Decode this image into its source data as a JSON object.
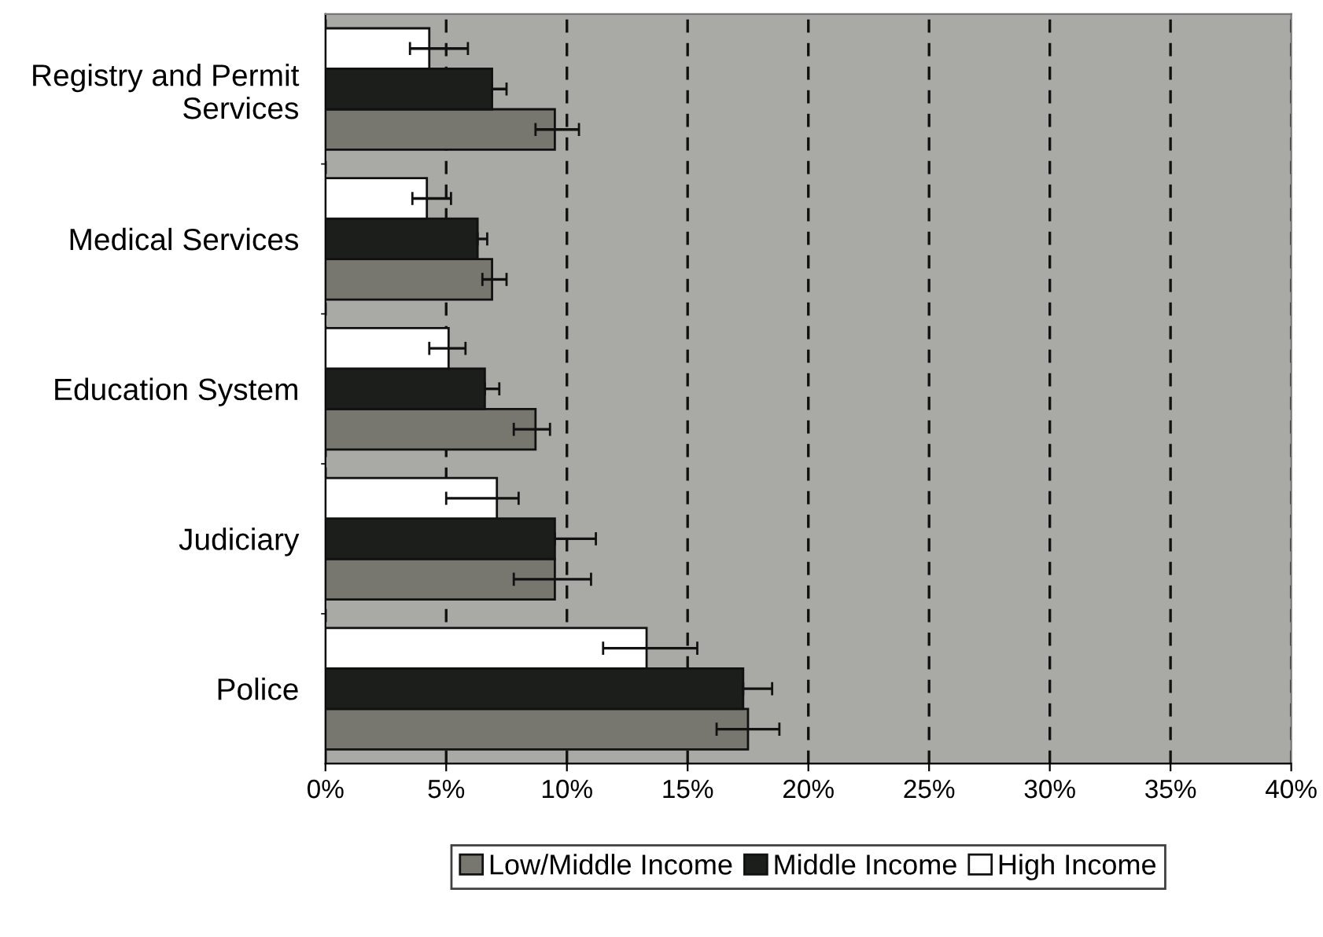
{
  "chart_data": {
    "type": "bar",
    "orientation": "horizontal",
    "categories": [
      "Registry and Permit\nServices",
      "Medical Services",
      "Education System",
      "Judiciary",
      "Police"
    ],
    "series": [
      {
        "name": "Low/Middle Income",
        "color": "#77776f",
        "values": [
          9.5,
          6.9,
          8.7,
          9.5,
          17.5
        ],
        "errors": [
          [
            8.7,
            10.5
          ],
          [
            6.5,
            7.5
          ],
          [
            7.8,
            9.3
          ],
          [
            7.8,
            11.0
          ],
          [
            16.2,
            18.8
          ]
        ]
      },
      {
        "name": "Middle Income",
        "color": "#1c1e1c",
        "values": [
          6.9,
          6.3,
          6.6,
          9.5,
          17.3
        ],
        "errors": [
          [
            6.9,
            7.5
          ],
          [
            6.3,
            6.7
          ],
          [
            6.6,
            7.2
          ],
          [
            9.5,
            11.2
          ],
          [
            17.3,
            18.5
          ]
        ]
      },
      {
        "name": "High Income",
        "color": "#ffffff",
        "values": [
          4.3,
          4.2,
          5.1,
          7.1,
          13.3
        ],
        "errors": [
          [
            3.5,
            5.9
          ],
          [
            3.6,
            5.2
          ],
          [
            4.3,
            5.8
          ],
          [
            5.0,
            8.0
          ],
          [
            11.5,
            15.4
          ]
        ]
      }
    ],
    "xlim": [
      0,
      40
    ],
    "xticks": [
      {
        "value": 0,
        "label": "0%"
      },
      {
        "value": 5,
        "label": "5%"
      },
      {
        "value": 10,
        "label": "10%"
      },
      {
        "value": 15,
        "label": "15%"
      },
      {
        "value": 20,
        "label": "20%"
      },
      {
        "value": 25,
        "label": "25%"
      },
      {
        "value": 30,
        "label": "30%"
      },
      {
        "value": 35,
        "label": "35%"
      },
      {
        "value": 40,
        "label": "40%"
      }
    ],
    "grid": "x",
    "legend": "bottom"
  }
}
